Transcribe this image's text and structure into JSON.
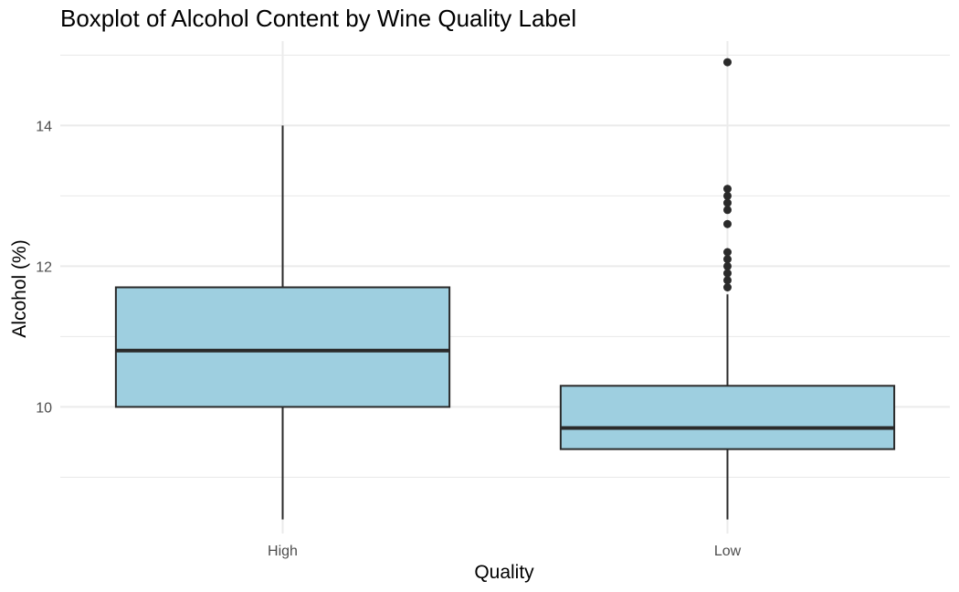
{
  "chart_data": {
    "type": "boxplot",
    "title": "Boxplot of Alcohol Content by Wine Quality Label",
    "xlabel": "Quality",
    "ylabel": "Alcohol (%)",
    "categories": [
      "High",
      "Low"
    ],
    "ylim": [
      8.2,
      15.2
    ],
    "y_ticks": [
      10,
      12,
      14
    ],
    "y_minor_ticks": [
      9,
      11,
      13,
      15
    ],
    "grid": true,
    "legend": "none",
    "box_fill": "#9ecfe0",
    "box_stroke": "#2a2a2a",
    "grid_color": "#ebebeb",
    "outlier_color": "#2a2a2a",
    "boxes": [
      {
        "category": "High",
        "whisker_low": 8.4,
        "q1": 10.0,
        "median": 10.8,
        "q3": 11.7,
        "whisker_high": 14.0,
        "outliers": []
      },
      {
        "category": "Low",
        "whisker_low": 8.4,
        "q1": 9.4,
        "median": 9.7,
        "q3": 10.3,
        "whisker_high": 11.6,
        "outliers": [
          11.7,
          11.8,
          11.9,
          12.0,
          12.1,
          12.2,
          12.6,
          12.8,
          12.9,
          13.0,
          13.1,
          14.9
        ]
      }
    ]
  }
}
